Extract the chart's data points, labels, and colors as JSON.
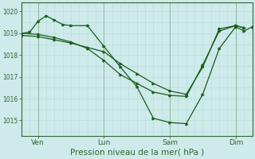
{
  "background_color": "#ceeaea",
  "grid_color_major": "#a8d0d0",
  "grid_color_minor": "#b8dcdc",
  "line_color": "#1a5c1a",
  "marker_color": "#1a5c1a",
  "axis_color": "#336633",
  "tick_label_color": "#336633",
  "xlabel": "Pression niveau de la mer( hPa )",
  "xlabel_fontsize": 7.5,
  "ylim": [
    1014.3,
    1020.4
  ],
  "yticks": [
    1015,
    1016,
    1017,
    1018,
    1019,
    1020
  ],
  "ytick_fontsize": 5.5,
  "xtick_fontsize": 6.5,
  "xlim": [
    0,
    168
  ],
  "xtick_positions": [
    12,
    60,
    108,
    156
  ],
  "xtick_labels": [
    "Ven",
    "Lun",
    "Sam",
    "Dim"
  ],
  "minor_xtick_step": 6,
  "minor_ytick_step": 0.5,
  "line1_x": [
    0,
    6,
    12,
    18,
    24,
    30,
    36,
    48,
    60,
    72,
    84,
    96,
    108,
    120,
    132,
    144,
    156,
    162,
    168
  ],
  "line1_y": [
    1019.0,
    1019.05,
    1019.55,
    1019.8,
    1019.6,
    1019.4,
    1019.35,
    1019.35,
    1018.4,
    1017.45,
    1016.55,
    1015.1,
    1014.9,
    1014.85,
    1016.2,
    1018.3,
    1019.3,
    1019.1,
    1019.3
  ],
  "line2_x": [
    0,
    12,
    24,
    36,
    48,
    60,
    72,
    84,
    96,
    108,
    120,
    132,
    144,
    156,
    162
  ],
  "line2_y": [
    1018.9,
    1018.85,
    1018.7,
    1018.55,
    1018.35,
    1018.15,
    1017.6,
    1017.15,
    1016.7,
    1016.35,
    1016.2,
    1017.45,
    1019.2,
    1019.35,
    1019.25
  ],
  "line3_x": [
    0,
    12,
    24,
    36,
    48,
    60,
    72,
    84,
    96,
    108,
    120,
    132,
    144,
    156,
    162
  ],
  "line3_y": [
    1019.0,
    1018.95,
    1018.8,
    1018.6,
    1018.3,
    1017.75,
    1017.1,
    1016.7,
    1016.3,
    1016.15,
    1016.1,
    1017.55,
    1019.1,
    1019.35,
    1019.25
  ],
  "lw": 0.9,
  "ms": 2.0
}
